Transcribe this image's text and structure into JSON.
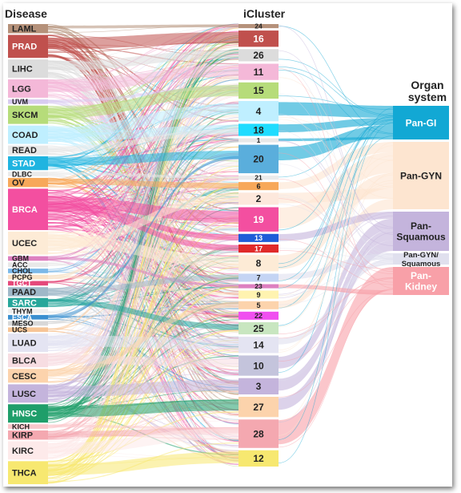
{
  "headers": {
    "disease": "Disease",
    "icluster": "iCluster",
    "organ_line1": "Organ",
    "organ_line2": "system"
  },
  "diseases": [
    {
      "name": "LAML",
      "color": "#b5917a",
      "size": 2
    },
    {
      "name": "PRAD",
      "color": "#c0504d",
      "size": 5
    },
    {
      "name": "LIHC",
      "color": "#dcdcdc",
      "size": 4
    },
    {
      "name": "LGG",
      "color": "#f4b8d8",
      "size": 4
    },
    {
      "name": "UVM",
      "color": "#d8ccf0",
      "size": 1
    },
    {
      "name": "SKCM",
      "color": "#b6dc7a",
      "size": 4
    },
    {
      "name": "COAD",
      "color": "#bfefff",
      "size": 4
    },
    {
      "name": "READ",
      "color": "#e8e8e8",
      "size": 2
    },
    {
      "name": "STAD",
      "color": "#1fb4e0",
      "size": 3
    },
    {
      "name": "DLBC",
      "color": "#eaeaea",
      "size": 1
    },
    {
      "name": "OV",
      "color": "#f7a85a",
      "size": 2
    },
    {
      "name": "BRCA",
      "color": "#f34fa0",
      "size": 9
    },
    {
      "name": "UCEC",
      "color": "#fdebd6",
      "size": 5
    },
    {
      "name": "GBM",
      "color": "#dd7fc0",
      "size": 1
    },
    {
      "name": "ACC",
      "color": "#e8e8e8",
      "size": 1
    },
    {
      "name": "CHOL",
      "color": "#7ab8e8",
      "size": 1
    },
    {
      "name": "PCPG",
      "color": "#f8e2c6",
      "size": 1
    },
    {
      "name": "TGCT",
      "color": "#e4487a",
      "size": 1
    },
    {
      "name": "PAAD",
      "color": "#9fb8c8",
      "size": 2
    },
    {
      "name": "SARC",
      "color": "#26a69a",
      "size": 2
    },
    {
      "name": "THYM",
      "color": "#efefef",
      "size": 1
    },
    {
      "name": "ESCA",
      "color": "#3a8fd0",
      "size": 1
    },
    {
      "name": "MESO",
      "color": "#d8d8d8",
      "size": 1
    },
    {
      "name": "UCS",
      "color": "#f7c596",
      "size": 1
    },
    {
      "name": "LUAD",
      "color": "#e4e4f2",
      "size": 4
    },
    {
      "name": "BLCA",
      "color": "#f7dde2",
      "size": 3
    },
    {
      "name": "CESC",
      "color": "#fcd3ac",
      "size": 3
    },
    {
      "name": "LUSC",
      "color": "#c4b4dc",
      "size": 4
    },
    {
      "name": "HNSC",
      "color": "#1f9e6a",
      "size": 4
    },
    {
      "name": "KICH",
      "color": "#fbc8cc",
      "size": 1
    },
    {
      "name": "KIRP",
      "color": "#f4a8b0",
      "size": 2
    },
    {
      "name": "KIRC",
      "color": "#fdeaea",
      "size": 4
    },
    {
      "name": "THCA",
      "color": "#f7e870",
      "size": 5
    }
  ],
  "clusters": [
    {
      "label": "24",
      "color": "#b5917a",
      "size": 1
    },
    {
      "label": "16",
      "color": "#c0504d",
      "size": 4
    },
    {
      "label": "26",
      "color": "#dcdcdc",
      "size": 3
    },
    {
      "label": "11",
      "color": "#f4b8d8",
      "size": 4
    },
    {
      "label": "15",
      "color": "#b6dc7a",
      "size": 4
    },
    {
      "label": "4",
      "color": "#bfefff",
      "size": 5
    },
    {
      "label": "18",
      "color": "#1fdcff",
      "size": 3
    },
    {
      "label": "1",
      "color": "#e8e8e8",
      "size": 1
    },
    {
      "label": "20",
      "color": "#5aaedc",
      "size": 7
    },
    {
      "label": "21",
      "color": "#eaeaea",
      "size": 1
    },
    {
      "label": "6",
      "color": "#f7a85a",
      "size": 2
    },
    {
      "label": "2",
      "color": "#fde8dc",
      "size": 3
    },
    {
      "label": "19",
      "color": "#f34fa0",
      "size": 6
    },
    {
      "label": "13",
      "color": "#1e5cd8",
      "size": 2
    },
    {
      "label": "17",
      "color": "#e02a2a",
      "size": 2
    },
    {
      "label": "8",
      "color": "#fdebd6",
      "size": 4
    },
    {
      "label": "7",
      "color": "#c4d4f4",
      "size": 2
    },
    {
      "label": "23",
      "color": "#dd7fc0",
      "size": 1
    },
    {
      "label": "9",
      "color": "#fff3b0",
      "size": 2
    },
    {
      "label": "5",
      "color": "#fcd3ac",
      "size": 2
    },
    {
      "label": "22",
      "color": "#f050f0",
      "size": 2
    },
    {
      "label": "25",
      "color": "#c8e6c0",
      "size": 3
    },
    {
      "label": "14",
      "color": "#e4e4f2",
      "size": 4
    },
    {
      "label": "10",
      "color": "#c4c4dc",
      "size": 5
    },
    {
      "label": "3",
      "color": "#c4b4dc",
      "size": 4
    },
    {
      "label": "27",
      "color": "#fcd3ac",
      "size": 5
    },
    {
      "label": "28",
      "color": "#f4a8b0",
      "size": 7
    },
    {
      "label": "12",
      "color": "#f7e870",
      "size": 4
    }
  ],
  "organs": [
    {
      "label_lines": [
        "Pan-GI"
      ],
      "color": "#12a8d4",
      "size": 6,
      "text_color": "#ffffff"
    },
    {
      "label_lines": [
        "Pan-GYN"
      ],
      "color": "#fde5d0",
      "size": 12,
      "text_color": "#222222"
    },
    {
      "label_lines": [
        "Pan-",
        "Squamous"
      ],
      "color": "#c4b4dc",
      "size": 7,
      "text_color": "#222222"
    },
    {
      "label_lines": [
        "Pan-GYN/",
        "Squamous"
      ],
      "color": "#e0e0ee",
      "size": 2,
      "text_color": "#222222"
    },
    {
      "label_lines": [
        "Pan-",
        "Kidney"
      ],
      "color": "#f8a0a8",
      "size": 5,
      "text_color": "#ffffff"
    }
  ],
  "major_flows": [
    [
      "LAML",
      "24"
    ],
    [
      "PRAD",
      "16"
    ],
    [
      "LIHC",
      "26"
    ],
    [
      "LGG",
      "11"
    ],
    [
      "UVM",
      "15"
    ],
    [
      "SKCM",
      "15"
    ],
    [
      "COAD",
      "4"
    ],
    [
      "COAD",
      "18"
    ],
    [
      "READ",
      "18"
    ],
    [
      "STAD",
      "20"
    ],
    [
      "DLBC",
      "21"
    ],
    [
      "OV",
      "6"
    ],
    [
      "BRCA",
      "19"
    ],
    [
      "BRCA",
      "13"
    ],
    [
      "BRCA",
      "17"
    ],
    [
      "UCEC",
      "8"
    ],
    [
      "UCEC",
      "2"
    ],
    [
      "GBM",
      "23"
    ],
    [
      "PCPG",
      "9"
    ],
    [
      "PAAD",
      "7"
    ],
    [
      "SARC",
      "25"
    ],
    [
      "ESCA",
      "20"
    ],
    [
      "LUAD",
      "14"
    ],
    [
      "BLCA",
      "10"
    ],
    [
      "CESC",
      "5"
    ],
    [
      "LUSC",
      "3"
    ],
    [
      "HNSC",
      "27"
    ],
    [
      "KICH",
      "28"
    ],
    [
      "KIRP",
      "28"
    ],
    [
      "KIRC",
      "28"
    ],
    [
      "THCA",
      "12"
    ]
  ],
  "organ_flows": [
    [
      "4",
      "Pan-GI",
      5
    ],
    [
      "18",
      "Pan-GI",
      3
    ],
    [
      "20",
      "Pan-GI",
      5
    ],
    [
      "1",
      "Pan-GI",
      1
    ],
    [
      "6",
      "Pan-GYN",
      2
    ],
    [
      "19",
      "Pan-GYN",
      4
    ],
    [
      "8",
      "Pan-GYN",
      3
    ],
    [
      "2",
      "Pan-GYN",
      2
    ],
    [
      "5",
      "Pan-GYN",
      2
    ],
    [
      "13",
      "Pan-Squamous",
      2
    ],
    [
      "10",
      "Pan-Squamous",
      3
    ],
    [
      "3",
      "Pan-Squamous",
      3
    ],
    [
      "27",
      "Pan-Squamous",
      3
    ],
    [
      "7",
      "Pan-GYN/Squamous",
      1
    ],
    [
      "14",
      "Pan-GYN/Squamous",
      1
    ],
    [
      "28",
      "Pan-Kidney",
      5
    ],
    [
      "23",
      "Pan-Kidney",
      1
    ]
  ]
}
